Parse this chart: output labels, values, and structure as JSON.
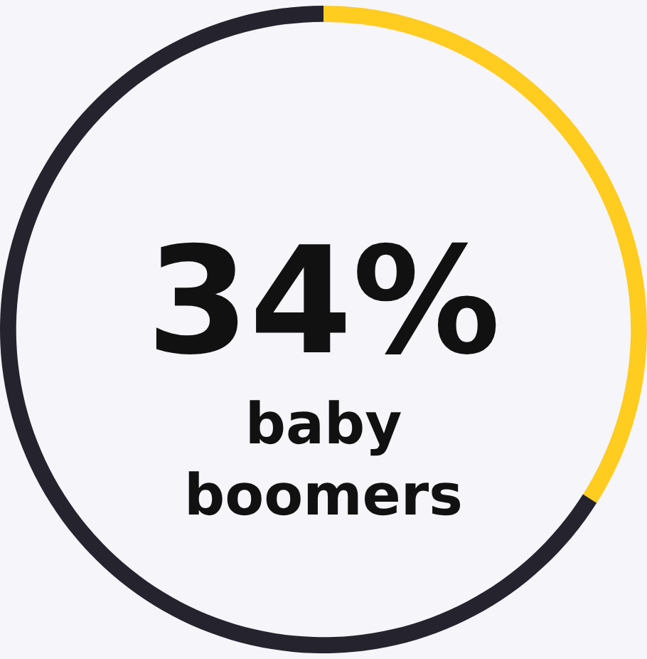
{
  "chart_data": {
    "type": "donut",
    "categories": [
      null,
      null
    ],
    "values": [
      34,
      66
    ],
    "colors": [
      "#ffcc1f",
      "#24232e"
    ],
    "legend": false,
    "annotations": [
      "34%",
      "baby boomers"
    ]
  }
}
